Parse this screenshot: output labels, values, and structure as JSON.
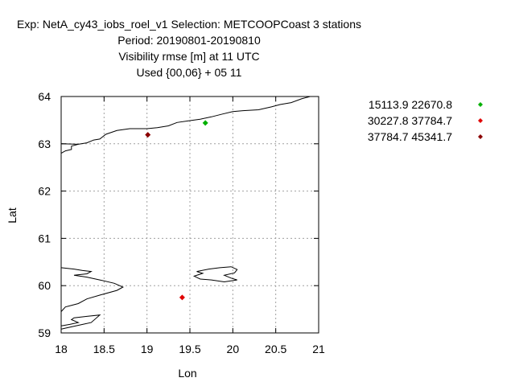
{
  "chart_data": {
    "type": "scatter",
    "title_lines": [
      "Exp: NetA_cy43_iobs_roel_v1   Selection: METCOOPCoast      3 stations",
      "Period: 20190801-20190810",
      "Visibility rmse [m] at  11 UTC",
      "Used {00,06} + 05 11"
    ],
    "xlabel": "Lon",
    "ylabel": "Lat",
    "xlim": [
      18,
      21
    ],
    "ylim": [
      59,
      64
    ],
    "xticks": [
      18,
      18.5,
      19,
      19.5,
      20,
      20.5,
      21
    ],
    "xtick_labels": [
      "18",
      "18.5",
      "19",
      "19.5",
      "20",
      "20.5",
      "21"
    ],
    "yticks": [
      59,
      60,
      61,
      62,
      63,
      64
    ],
    "ytick_labels": [
      "59",
      "60",
      "61",
      "62",
      "63",
      "64"
    ],
    "grid": true,
    "legend_position": "right",
    "series": [
      {
        "name": "15113.9 22670.8",
        "color": "#00b000",
        "points": [
          {
            "x": 19.68,
            "y": 63.44
          }
        ]
      },
      {
        "name": "30227.8 37784.7",
        "color": "#e00000",
        "points": [
          {
            "x": 19.41,
            "y": 59.75
          }
        ]
      },
      {
        "name": "37784.7 45341.7",
        "color": "#8b0000",
        "points": [
          {
            "x": 19.01,
            "y": 63.19
          }
        ]
      }
    ],
    "coastlines": [
      [
        [
          18.0,
          62.8
        ],
        [
          18.05,
          62.85
        ],
        [
          18.12,
          62.88
        ],
        [
          18.12,
          62.95
        ],
        [
          18.2,
          62.99
        ],
        [
          18.3,
          63.02
        ],
        [
          18.38,
          63.08
        ],
        [
          18.45,
          63.1
        ],
        [
          18.52,
          63.2
        ],
        [
          18.65,
          63.28
        ],
        [
          18.8,
          63.32
        ],
        [
          19.0,
          63.32
        ],
        [
          19.12,
          63.34
        ],
        [
          19.25,
          63.38
        ],
        [
          19.35,
          63.45
        ],
        [
          19.5,
          63.49
        ],
        [
          19.62,
          63.52
        ],
        [
          19.75,
          63.57
        ],
        [
          19.88,
          63.63
        ],
        [
          20.0,
          63.68
        ],
        [
          20.12,
          63.7
        ],
        [
          20.3,
          63.72
        ],
        [
          20.45,
          63.78
        ],
        [
          20.55,
          63.83
        ],
        [
          20.68,
          63.87
        ],
        [
          20.8,
          63.95
        ],
        [
          20.9,
          64.0
        ]
      ],
      [
        [
          18.0,
          63.0
        ],
        [
          18.2,
          62.99
        ]
      ],
      [
        [
          18.0,
          60.38
        ],
        [
          18.15,
          60.35
        ],
        [
          18.25,
          60.32
        ],
        [
          18.35,
          60.3
        ],
        [
          18.3,
          60.25
        ],
        [
          18.15,
          60.22
        ],
        [
          18.3,
          60.18
        ],
        [
          18.45,
          60.12
        ],
        [
          18.62,
          60.05
        ],
        [
          18.72,
          59.97
        ],
        [
          18.65,
          59.9
        ],
        [
          18.45,
          59.8
        ],
        [
          18.3,
          59.72
        ],
        [
          18.2,
          59.62
        ],
        [
          18.05,
          59.55
        ],
        [
          18.0,
          59.45
        ]
      ],
      [
        [
          18.0,
          59.08
        ],
        [
          18.1,
          59.12
        ],
        [
          18.25,
          59.18
        ],
        [
          18.35,
          59.22
        ],
        [
          18.45,
          59.38
        ],
        [
          18.3,
          59.35
        ],
        [
          18.15,
          59.32
        ],
        [
          18.12,
          59.28
        ],
        [
          18.2,
          59.22
        ],
        [
          18.1,
          59.18
        ],
        [
          18.0,
          59.15
        ]
      ],
      [
        [
          19.72,
          60.35
        ],
        [
          19.85,
          60.38
        ],
        [
          19.98,
          60.4
        ],
        [
          20.05,
          60.34
        ],
        [
          20.02,
          60.27
        ],
        [
          19.9,
          60.22
        ],
        [
          19.98,
          60.16
        ],
        [
          20.05,
          60.12
        ],
        [
          19.9,
          60.08
        ],
        [
          19.75,
          60.12
        ],
        [
          19.62,
          60.14
        ],
        [
          19.55,
          60.2
        ],
        [
          19.65,
          60.26
        ],
        [
          19.58,
          60.3
        ],
        [
          19.72,
          60.35
        ]
      ]
    ]
  }
}
